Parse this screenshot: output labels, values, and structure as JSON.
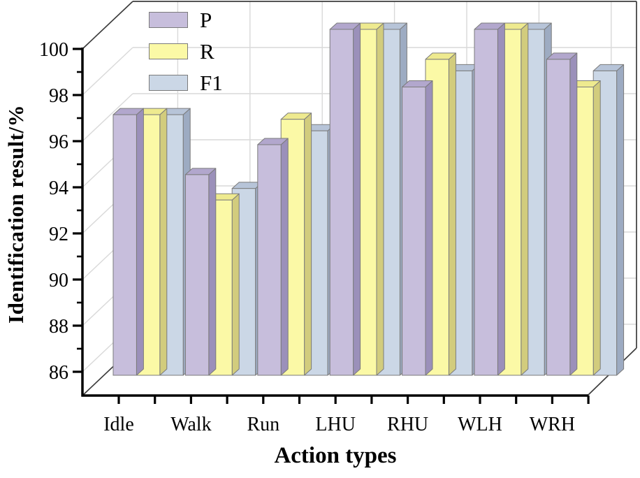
{
  "chart_data": {
    "type": "bar",
    "style": "3d-clustered-column",
    "title": "",
    "xlabel": "Action types",
    "ylabel": "Identification result/%",
    "categories": [
      "Idle",
      "Walk",
      "Run",
      "LHU",
      "RHU",
      "WLH",
      "WRH"
    ],
    "series": [
      {
        "name": "P",
        "color": "#c7bedc",
        "top_color": "#b2a7cd",
        "side_color": "#9b90ba",
        "values": [
          96.3,
          93.7,
          95.0,
          100.0,
          97.5,
          100.0,
          98.7
        ]
      },
      {
        "name": "R",
        "color": "#fbf9a6",
        "top_color": "#eeea8f",
        "side_color": "#d2cc7d",
        "values": [
          96.3,
          92.6,
          96.1,
          100.0,
          98.7,
          100.0,
          97.5
        ]
      },
      {
        "name": "F1",
        "color": "#cbd7e6",
        "top_color": "#b7c4d8",
        "side_color": "#9dabc2",
        "values": [
          96.3,
          93.1,
          95.6,
          100.0,
          98.2,
          100.0,
          98.2
        ]
      }
    ],
    "ylim": [
      85,
      100
    ],
    "yticks": [
      86,
      88,
      90,
      92,
      94,
      96,
      98,
      100
    ],
    "grid": true,
    "legend_position": "top-left",
    "colors": {
      "axis": "#000000",
      "frame": "#3c3c3c",
      "gridline": "#d9d9d9",
      "bar_outline": "#7b7b7b",
      "background": "#ffffff",
      "text": "#000000"
    }
  }
}
